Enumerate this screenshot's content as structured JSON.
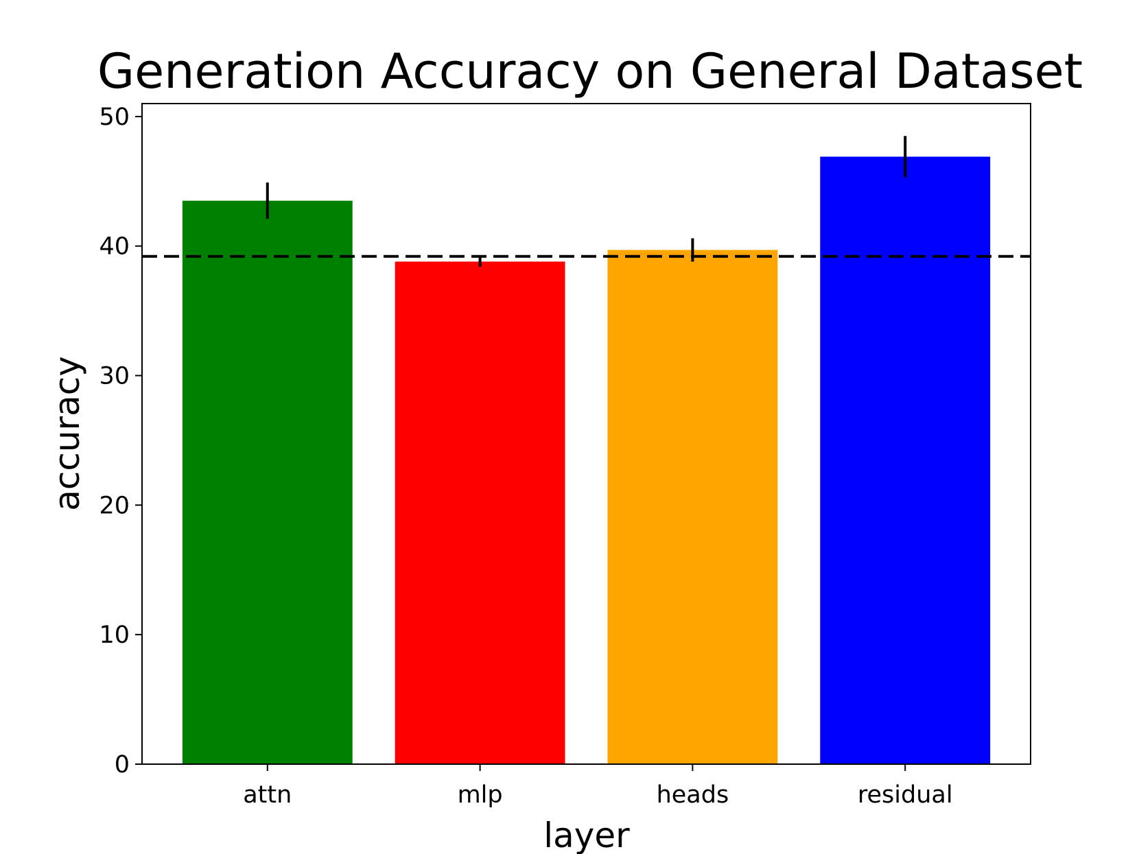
{
  "chart_data": {
    "type": "bar",
    "title": "Generation Accuracy on General Dataset",
    "xlabel": "layer",
    "ylabel": "accuracy",
    "categories": [
      "attn",
      "mlp",
      "heads",
      "residual"
    ],
    "values": [
      43.5,
      38.8,
      39.7,
      46.9
    ],
    "errors": [
      1.4,
      0.4,
      0.9,
      1.6
    ],
    "colors": [
      "#008000",
      "#ff0000",
      "#ffa500",
      "#0000ff"
    ],
    "baseline": 39.2,
    "baseline_style": "dashed",
    "ylim": [
      0,
      51
    ],
    "yticks": [
      0,
      10,
      20,
      30,
      40,
      50
    ],
    "grid": false
  }
}
